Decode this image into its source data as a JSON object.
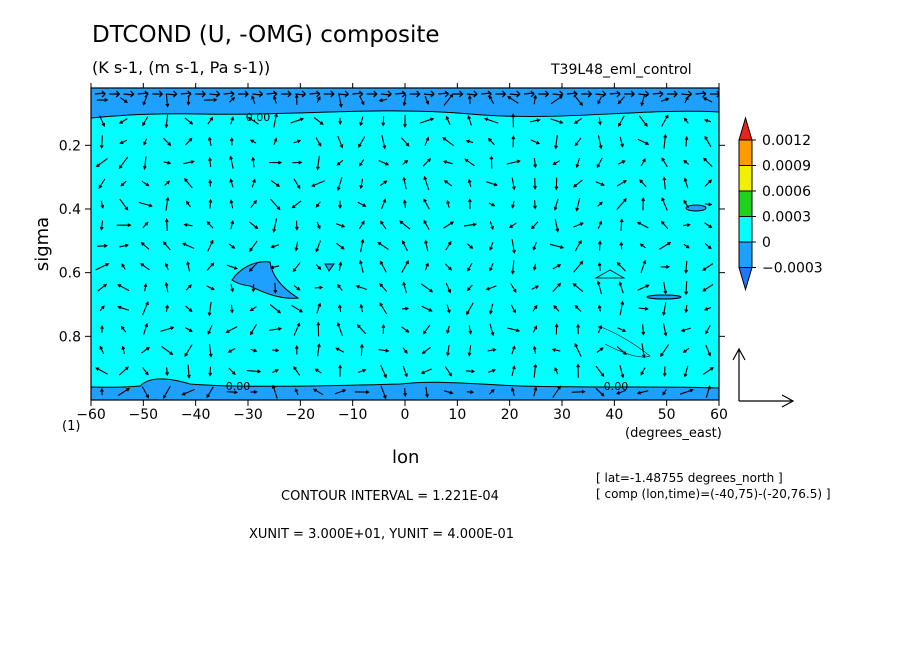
{
  "header": {
    "title": "DTCOND (U, -OMG) composite",
    "subtitle": "(K s-1, (m s-1, Pa s-1))",
    "run_name": "T39L48_eml_control"
  },
  "footer": {
    "latitude_note": "[ lat=-1.48755 degrees_north ]",
    "composite_note": "[ comp (lon,time)=(-40,75)-(-20,76.5) ]",
    "contour_interval": "CONTOUR INTERVAL = 1.221E-04",
    "unit_vectors": "XUNIT = 3.000E+01, YUNIT = 4.000E-01"
  },
  "colors": {
    "background_fill": "#00ffff",
    "negative_fill": "#1ea0ff",
    "vector": "#000000"
  },
  "chart_data": {
    "type": "heatmap",
    "title": "DTCOND (U, -OMG) composite",
    "xlabel": "lon",
    "x_units_label": "(degrees_east)",
    "ylabel": "sigma",
    "y_extra_tick": "(1)",
    "xlim": [
      -60,
      60
    ],
    "ylim": [
      1.0,
      0.02
    ],
    "y_inverted": true,
    "x_ticks": [
      -60,
      -50,
      -40,
      -30,
      -20,
      -10,
      0,
      10,
      20,
      30,
      40,
      50,
      60
    ],
    "y_ticks": [
      0.2,
      0.4,
      0.6,
      0.8
    ],
    "contour_labels": [
      "0.00",
      "0.00",
      "0.00"
    ],
    "colorbar": {
      "labels": [
        "0.0012",
        "0.0009",
        "0.0006",
        "0.0003",
        "0",
        "-0.0003"
      ],
      "colors": [
        "#e8221c",
        "#ff9a00",
        "#f0f000",
        "#1ed21e",
        "#00ffff",
        "#1ea0ff",
        "#1e78ff"
      ]
    },
    "negative_regions_note": "thin layers near sigma 0.02-0.1 and sigma 0.95-1.0, small patches near (-30,0.62), (-15,0.57), (55,0.4), (55,0.67)",
    "overlay": "wind vectors (U, -OMG)",
    "vector_key": {
      "xunit": 30.0,
      "yunit": 0.4
    }
  }
}
